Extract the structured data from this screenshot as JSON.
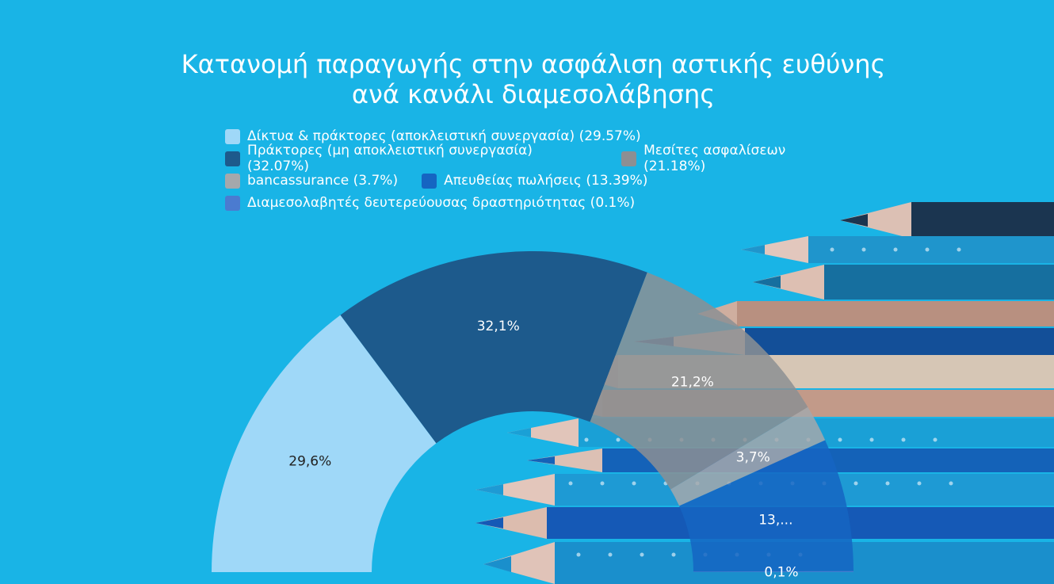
{
  "title_line1": "Κατανομή παραγωγής στην ασφάλιση αστικής ευθύνης",
  "title_line2": "ανά κανάλι διαμεσολάβησης",
  "chart_data": {
    "type": "pie",
    "subtype": "semi-donut",
    "title": "Κατανομή παραγωγής στην ασφάλιση αστικής ευθύνης ανά κανάλι διαμεσολάβησης",
    "legend_position": "top",
    "slices": [
      {
        "name": "Δίκτυα & πράκτορες (αποκλειστική συνεργασία)",
        "value": 29.57,
        "legend": "Δίκτυα & πράκτορες (αποκλειστική συνεργασία) (29.57%)",
        "label": "29,6%",
        "color": "#9fd8f8",
        "label_color": "#222222"
      },
      {
        "name": "Πράκτορες (μη αποκλειστική συνεργασία)",
        "value": 32.07,
        "legend": "Πράκτορες (μη αποκλειστική συνεργασία) (32.07%)",
        "label": "32,1%",
        "color": "#1d5a8c",
        "label_color": "#ffffff"
      },
      {
        "name": "Μεσίτες ασφαλίσεων",
        "value": 21.18,
        "legend": "Μεσίτες ασφαλίσεων (21.18%)",
        "label": "21,2%",
        "color": "#8c8f93",
        "label_color": "#ffffff"
      },
      {
        "name": "bancassurance",
        "value": 3.7,
        "legend": "bancassurance (3.7%)",
        "label": "3,7%",
        "color": "#a5a8ac",
        "label_color": "#ffffff"
      },
      {
        "name": "Απευθείας πωλήσεις",
        "value": 13.39,
        "legend": "Απευθείας πωλήσεις (13.39%)",
        "label": "13,...",
        "color": "#1565c2",
        "label_color": "#ffffff"
      },
      {
        "name": "Διαμεσολαβητές δευτερεύουσας δραστηριότητας",
        "value": 0.1,
        "legend": "Διαμεσολαβητές δευτερεύουσας δραστηριότητας (0.1%)",
        "label": "0,1%",
        "color": "#4b7bd0",
        "label_color": "#ffffff"
      }
    ]
  }
}
